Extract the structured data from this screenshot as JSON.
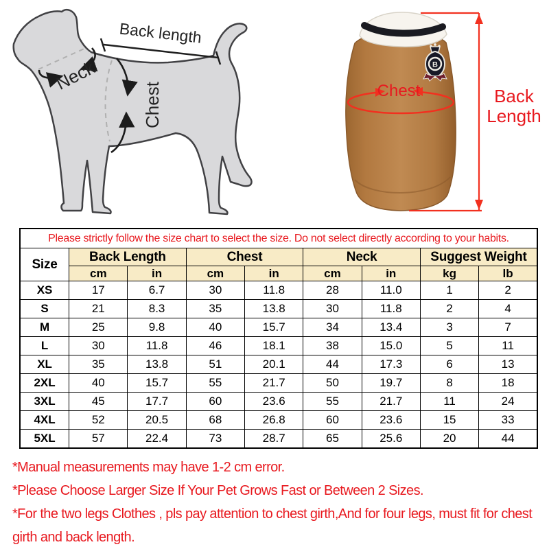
{
  "colors": {
    "red_text": "#e8191f",
    "red_line": "#f2301f",
    "table_header_bg": "#f8ebc6",
    "dog_fill": "#d9d9db",
    "dog_outline": "#414144",
    "sweater_body": "#b27940",
    "collar_white": "#f7f4ee",
    "collar_stripe": "#1a1b21",
    "badge_dark": "#171826",
    "badge_ribbon": "#6e1f2d"
  },
  "measure_diagram": {
    "dog": {
      "back_length_label": "Back length",
      "neck_label": "Neck",
      "chest_label": "Chest"
    },
    "garment": {
      "chest_label": "Chest",
      "back_length_line1": "Back",
      "back_length_line2": "Length",
      "badge_letter": "B"
    }
  },
  "size_table": {
    "notice": "Please strictly follow the size chart to select the size. Do not select directly according to your habits.",
    "columns": {
      "size": "Size",
      "groups": [
        "Back Length",
        "Chest",
        "Neck",
        "Suggest Weight"
      ],
      "units": [
        "cm",
        "in",
        "cm",
        "in",
        "cm",
        "in",
        "kg",
        "lb"
      ]
    },
    "rows": [
      {
        "size": "XS",
        "values": [
          "17",
          "6.7",
          "30",
          "11.8",
          "28",
          "11.0",
          "1",
          "2"
        ]
      },
      {
        "size": "S",
        "values": [
          "21",
          "8.3",
          "35",
          "13.8",
          "30",
          "11.8",
          "2",
          "4"
        ]
      },
      {
        "size": "M",
        "values": [
          "25",
          "9.8",
          "40",
          "15.7",
          "34",
          "13.4",
          "3",
          "7"
        ]
      },
      {
        "size": "L",
        "values": [
          "30",
          "11.8",
          "46",
          "18.1",
          "38",
          "15.0",
          "5",
          "11"
        ]
      },
      {
        "size": "XL",
        "values": [
          "35",
          "13.8",
          "51",
          "20.1",
          "44",
          "17.3",
          "6",
          "13"
        ]
      },
      {
        "size": "2XL",
        "values": [
          "40",
          "15.7",
          "55",
          "21.7",
          "50",
          "19.7",
          "8",
          "18"
        ]
      },
      {
        "size": "3XL",
        "values": [
          "45",
          "17.7",
          "60",
          "23.6",
          "55",
          "21.7",
          "11",
          "24"
        ]
      },
      {
        "size": "4XL",
        "values": [
          "52",
          "20.5",
          "68",
          "26.8",
          "60",
          "23.6",
          "15",
          "33"
        ]
      },
      {
        "size": "5XL",
        "values": [
          "57",
          "22.4",
          "73",
          "28.7",
          "65",
          "25.6",
          "20",
          "44"
        ]
      }
    ]
  },
  "notes": [
    "*Manual measurements may have 1-2 cm error.",
    "*Please Choose Larger Size If Your Pet Grows Fast or Between 2 Sizes.",
    "*For the two legs Clothes , pls pay attention to chest girth,And for four legs, must fit for chest girth and back length."
  ]
}
